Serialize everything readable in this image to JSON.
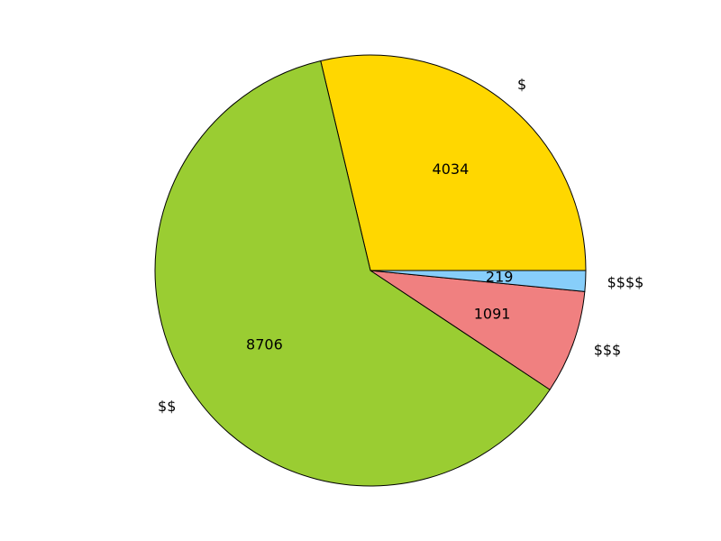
{
  "chart_data": {
    "type": "pie",
    "title": "",
    "categories": [
      "$",
      "$$",
      "$$$",
      "$$$$"
    ],
    "values": [
      4034,
      8706,
      1091,
      219
    ],
    "colors": [
      "#ffd700",
      "#9acd32",
      "#f08080",
      "#87cefa"
    ],
    "start_angle_deg": 0,
    "direction": "counterclockwise",
    "legend": "none"
  }
}
